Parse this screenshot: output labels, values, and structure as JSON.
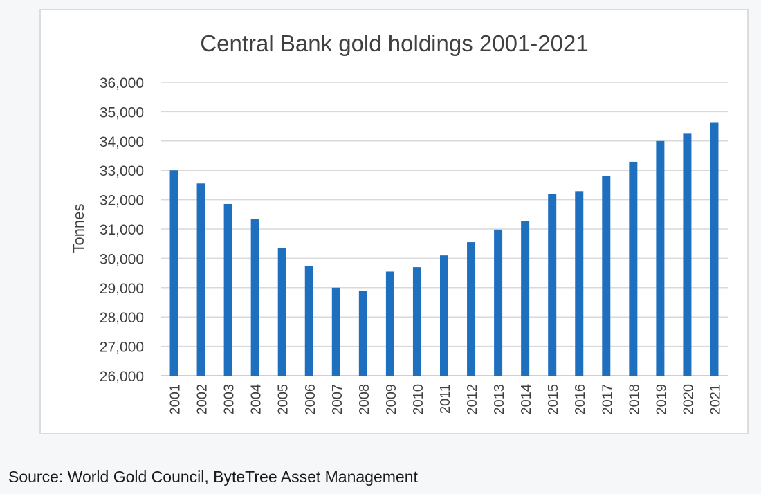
{
  "chart_data": {
    "type": "bar",
    "title": "Central Bank gold holdings 2001-2021",
    "xlabel": "",
    "ylabel": "Tonnes",
    "categories": [
      "2001",
      "2002",
      "2003",
      "2004",
      "2005",
      "2006",
      "2007",
      "2008",
      "2009",
      "2010",
      "2011",
      "2012",
      "2013",
      "2014",
      "2015",
      "2016",
      "2017",
      "2018",
      "2019",
      "2020",
      "2021"
    ],
    "values": [
      33000,
      32550,
      31850,
      31330,
      30350,
      29750,
      29000,
      28900,
      29550,
      29700,
      30100,
      30550,
      30980,
      31270,
      32200,
      32290,
      32810,
      33290,
      34000,
      34270,
      34620
    ],
    "ylim": [
      26000,
      36000
    ],
    "yticks": [
      "26,000",
      "27,000",
      "28,000",
      "29,000",
      "30,000",
      "31,000",
      "32,000",
      "33,000",
      "34,000",
      "35,000",
      "36,000"
    ],
    "grid": true,
    "bar_color": "#1f6fbf",
    "grid_color": "#d9d9d9"
  },
  "source": "Source: World Gold Council, ByteTree Asset Management"
}
